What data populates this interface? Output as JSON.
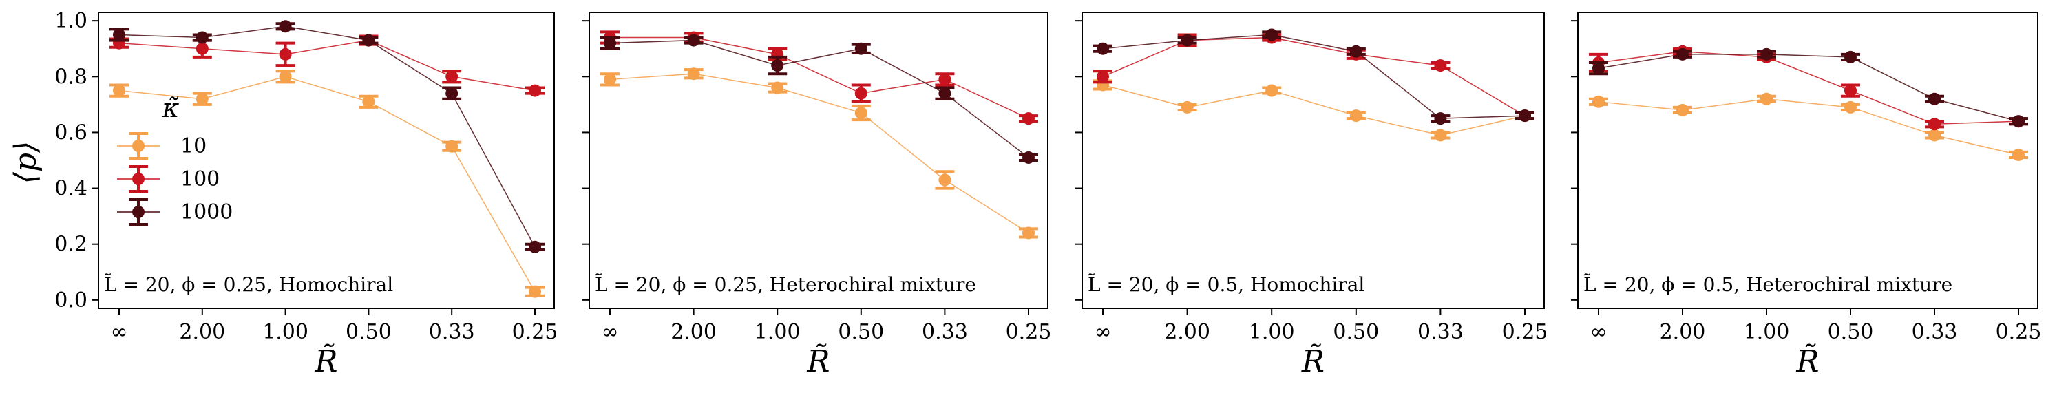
{
  "chart_data": {
    "type": "line",
    "ylabel": "⟨p⟩",
    "xlabel": "R̃",
    "categories": [
      "∞",
      "2.00",
      "1.00",
      "0.50",
      "0.33",
      "0.25"
    ],
    "ylim": [
      -0.03,
      1.03
    ],
    "yticks": [
      "0.0",
      "0.2",
      "0.4",
      "0.6",
      "0.8",
      "1.0"
    ],
    "ytick_values": [
      0.0,
      0.2,
      0.4,
      0.6,
      0.8,
      1.0
    ],
    "legend": {
      "title": "κ̃",
      "entries": [
        "10",
        "100",
        "1000"
      ]
    },
    "colors": [
      "#f5a04a",
      "#c8141e",
      "#4a0a10"
    ],
    "panels": [
      {
        "label": "L̃ = 20, ϕ = 0.25, Homochiral",
        "series": [
          {
            "name": "10",
            "values": [
              0.75,
              0.72,
              0.8,
              0.71,
              0.55,
              0.03
            ],
            "errors": [
              0.02,
              0.02,
              0.02,
              0.02,
              0.015,
              0.015
            ]
          },
          {
            "name": "100",
            "values": [
              0.92,
              0.9,
              0.88,
              0.93,
              0.8,
              0.75
            ],
            "errors": [
              0.015,
              0.03,
              0.04,
              0.015,
              0.02,
              0.01
            ]
          },
          {
            "name": "1000",
            "values": [
              0.95,
              0.94,
              0.98,
              0.93,
              0.74,
              0.19
            ],
            "errors": [
              0.02,
              0.01,
              0.01,
              0.01,
              0.02,
              0.01
            ]
          }
        ]
      },
      {
        "label": "L̃ = 20, ϕ = 0.25, Heterochiral mixture",
        "series": [
          {
            "name": "10",
            "values": [
              0.79,
              0.81,
              0.76,
              0.67,
              0.43,
              0.24
            ],
            "errors": [
              0.02,
              0.015,
              0.015,
              0.025,
              0.03,
              0.015
            ]
          },
          {
            "name": "100",
            "values": [
              0.94,
              0.94,
              0.88,
              0.74,
              0.79,
              0.65
            ],
            "errors": [
              0.02,
              0.015,
              0.02,
              0.03,
              0.02,
              0.01
            ]
          },
          {
            "name": "1000",
            "values": [
              0.92,
              0.93,
              0.84,
              0.9,
              0.74,
              0.51
            ],
            "errors": [
              0.02,
              0.01,
              0.03,
              0.015,
              0.02,
              0.01
            ]
          }
        ]
      },
      {
        "label": "L̃ = 20, ϕ = 0.5, Homochiral",
        "series": [
          {
            "name": "10",
            "values": [
              0.77,
              0.69,
              0.75,
              0.66,
              0.59,
              0.66
            ],
            "errors": [
              0.015,
              0.01,
              0.01,
              0.01,
              0.01,
              0.01
            ]
          },
          {
            "name": "100",
            "values": [
              0.8,
              0.93,
              0.94,
              0.88,
              0.84,
              0.66
            ],
            "errors": [
              0.02,
              0.02,
              0.01,
              0.015,
              0.01,
              0.01
            ]
          },
          {
            "name": "1000",
            "values": [
              0.9,
              0.93,
              0.95,
              0.89,
              0.65,
              0.66
            ],
            "errors": [
              0.01,
              0.01,
              0.01,
              0.01,
              0.01,
              0.01
            ]
          }
        ]
      },
      {
        "label": "L̃ = 20, ϕ = 0.5, Heterochiral mixture",
        "series": [
          {
            "name": "10",
            "values": [
              0.71,
              0.68,
              0.72,
              0.69,
              0.59,
              0.52
            ],
            "errors": [
              0.01,
              0.01,
              0.01,
              0.01,
              0.01,
              0.01
            ]
          },
          {
            "name": "100",
            "values": [
              0.85,
              0.89,
              0.87,
              0.75,
              0.63,
              0.64
            ],
            "errors": [
              0.03,
              0.01,
              0.01,
              0.02,
              0.01,
              0.01
            ]
          },
          {
            "name": "1000",
            "values": [
              0.83,
              0.88,
              0.88,
              0.87,
              0.72,
              0.64
            ],
            "errors": [
              0.02,
              0.01,
              0.01,
              0.01,
              0.01,
              0.01
            ]
          }
        ]
      }
    ]
  }
}
